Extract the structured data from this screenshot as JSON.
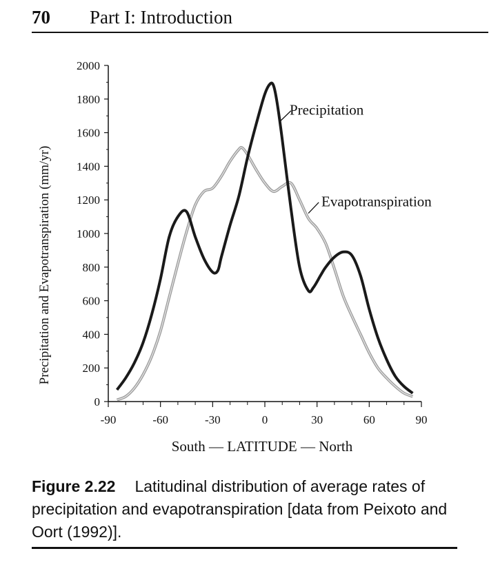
{
  "header": {
    "page_number": "70",
    "running_head": "Part I: Introduction"
  },
  "chart_data": {
    "type": "line",
    "ylabel": "Precipitation and Evapotranspiration (mm/yr)",
    "xlabel": "South — LATITUDE — North",
    "xlim": [
      -90,
      90
    ],
    "ylim": [
      0,
      2000
    ],
    "x_ticks": [
      -90,
      -60,
      -30,
      0,
      30,
      60,
      90
    ],
    "y_ticks": [
      0,
      200,
      400,
      600,
      800,
      1000,
      1200,
      1400,
      1600,
      1800,
      2000
    ],
    "grid": false,
    "legend": "none (inline labels)",
    "series": [
      {
        "name": "Precipitation",
        "color": "#1a1a1a",
        "x": [
          -85,
          -80,
          -75,
          -70,
          -65,
          -60,
          -55,
          -50,
          -45,
          -40,
          -35,
          -30,
          -27,
          -25,
          -20,
          -15,
          -10,
          -5,
          0,
          3,
          5,
          7,
          10,
          15,
          20,
          25,
          28,
          32,
          35,
          40,
          45,
          50,
          55,
          60,
          65,
          70,
          75,
          80,
          85
        ],
        "values": [
          70,
          140,
          230,
          350,
          520,
          730,
          980,
          1100,
          1130,
          980,
          850,
          770,
          780,
          860,
          1050,
          1220,
          1450,
          1650,
          1830,
          1890,
          1880,
          1780,
          1560,
          1150,
          800,
          660,
          680,
          750,
          800,
          860,
          890,
          870,
          750,
          550,
          380,
          250,
          150,
          90,
          50
        ]
      },
      {
        "name": "Evapotranspiration",
        "color": "#9a9a9a",
        "x": [
          -85,
          -80,
          -75,
          -70,
          -65,
          -60,
          -55,
          -50,
          -45,
          -40,
          -35,
          -30,
          -25,
          -20,
          -15,
          -13,
          -10,
          -5,
          0,
          5,
          10,
          15,
          20,
          25,
          30,
          35,
          40,
          45,
          50,
          55,
          60,
          65,
          70,
          75,
          80,
          85
        ],
        "values": [
          10,
          30,
          80,
          160,
          270,
          420,
          620,
          820,
          1010,
          1170,
          1250,
          1270,
          1340,
          1430,
          1500,
          1510,
          1470,
          1380,
          1300,
          1250,
          1280,
          1300,
          1200,
          1090,
          1030,
          940,
          790,
          630,
          510,
          400,
          290,
          200,
          140,
          90,
          50,
          30
        ]
      }
    ]
  },
  "axis": {
    "xlabel_south": "South",
    "xlabel_middle": "— LATITUDE —",
    "xlabel_north": "North"
  },
  "caption": {
    "figure_number": "Figure 2.22",
    "text": "Latitudinal distribution of average rates of precipitation and evapotranspiration [data from Peixoto and Oort (1992)]."
  }
}
